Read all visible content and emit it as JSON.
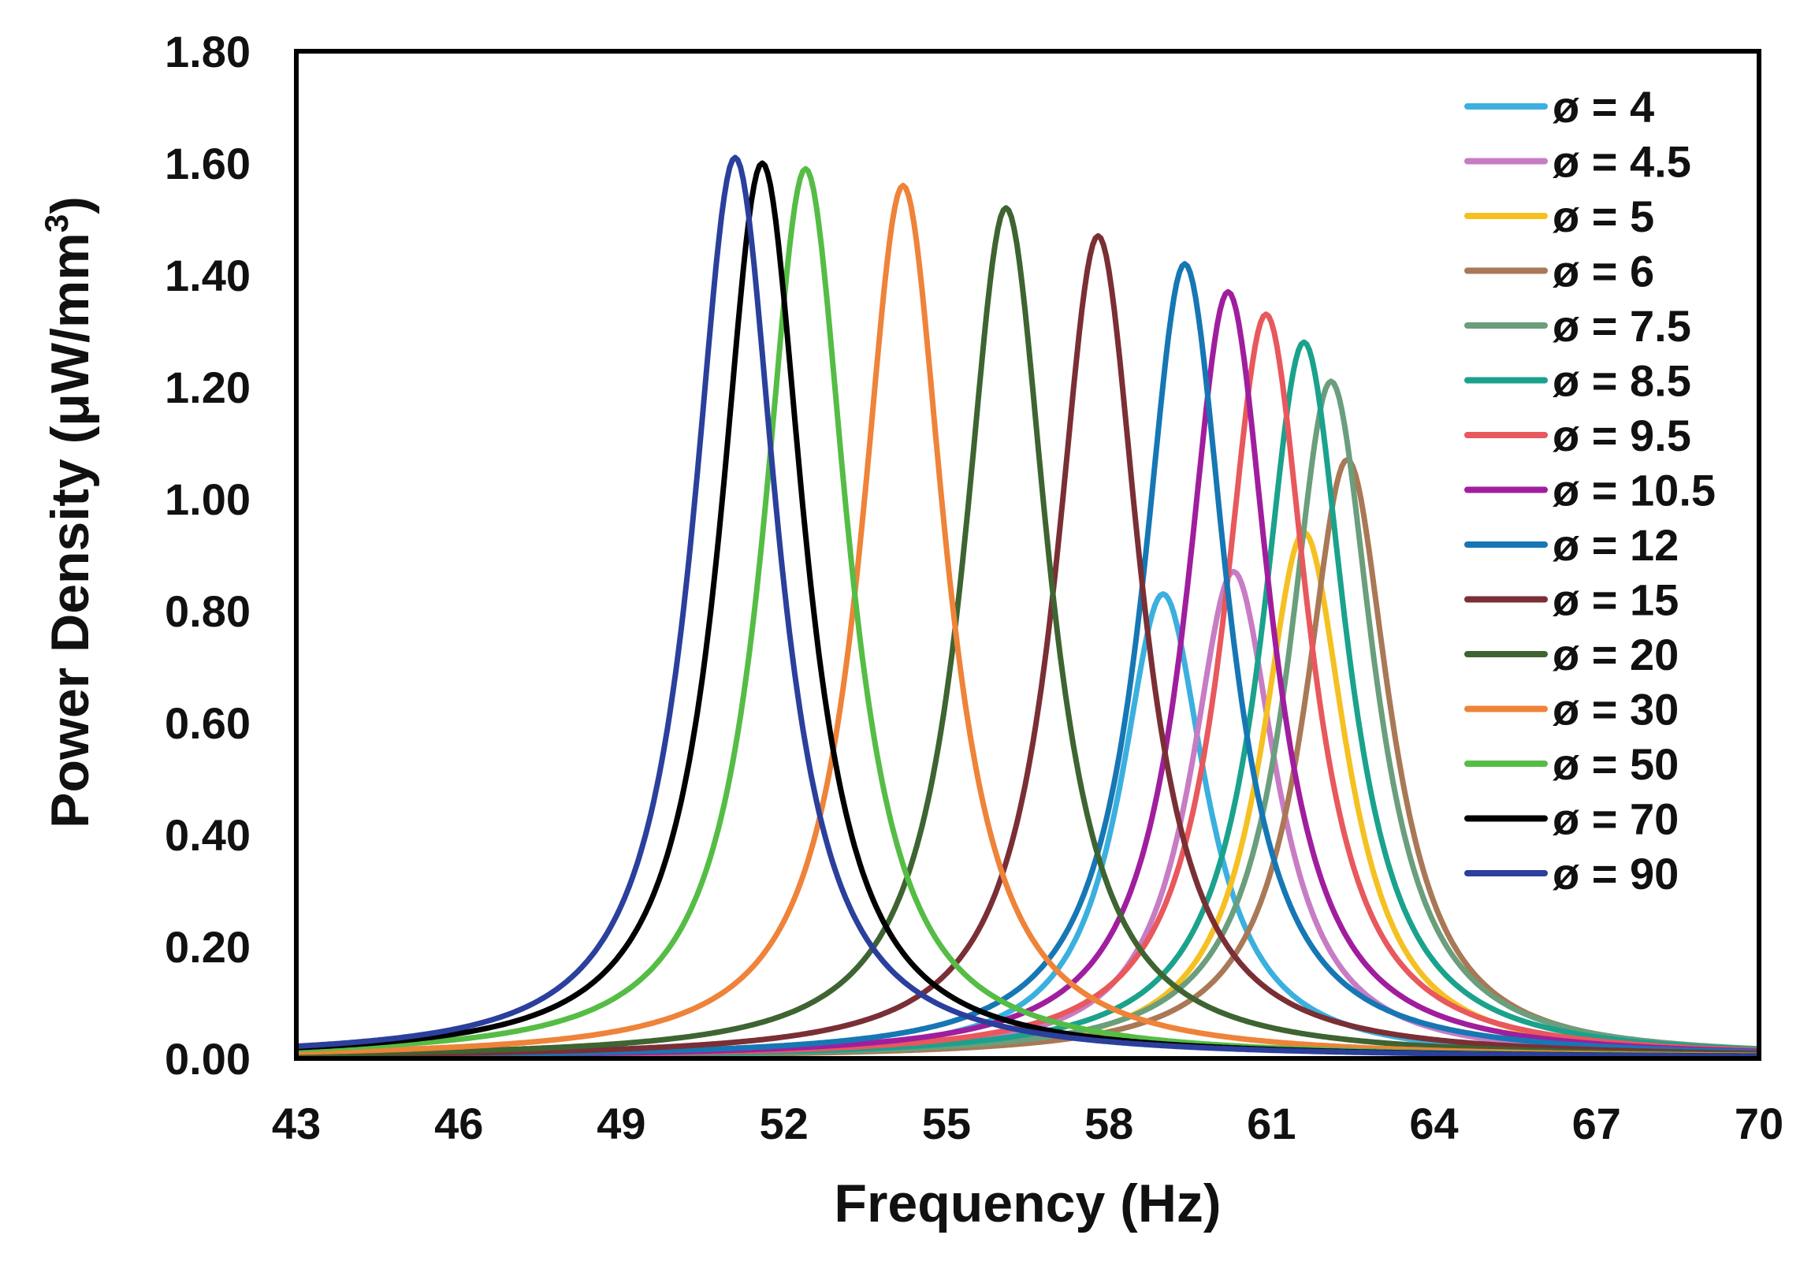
{
  "chart_data": {
    "type": "line",
    "title": "",
    "xlabel": "Frequency (Hz)",
    "ylabel_main": "Power Density (μW/mm",
    "ylabel_sup": "3",
    "ylabel_close": ")",
    "xlim": [
      43,
      70
    ],
    "ylim": [
      0,
      1.8
    ],
    "x_ticks": [
      "43",
      "46",
      "49",
      "52",
      "55",
      "58",
      "61",
      "64",
      "67",
      "70"
    ],
    "y_ticks": [
      "0.00",
      "0.20",
      "0.40",
      "0.60",
      "0.80",
      "1.00",
      "1.20",
      "1.40",
      "1.60",
      "1.80"
    ],
    "grid": false,
    "legend_position": "top-right",
    "series": [
      {
        "name": "ø = 4",
        "color": "#3bb0df",
        "peak_x": 59.0,
        "peak_y": 0.83,
        "hwhm": 0.95
      },
      {
        "name": "ø = 4.5",
        "color": "#c77cc4",
        "peak_x": 60.3,
        "peak_y": 0.87,
        "hwhm": 0.95
      },
      {
        "name": "ø = 5",
        "color": "#f5c022",
        "peak_x": 61.6,
        "peak_y": 0.94,
        "hwhm": 0.95
      },
      {
        "name": "ø = 6",
        "color": "#a97856",
        "peak_x": 62.4,
        "peak_y": 1.07,
        "hwhm": 0.95
      },
      {
        "name": "ø = 7.5",
        "color": "#6a9e7c",
        "peak_x": 62.1,
        "peak_y": 1.21,
        "hwhm": 0.95
      },
      {
        "name": "ø = 8.5",
        "color": "#1aa28c",
        "peak_x": 61.6,
        "peak_y": 1.28,
        "hwhm": 0.95
      },
      {
        "name": "ø = 9.5",
        "color": "#e8585c",
        "peak_x": 60.9,
        "peak_y": 1.33,
        "hwhm": 0.95
      },
      {
        "name": "ø = 10.5",
        "color": "#a01e9e",
        "peak_x": 60.2,
        "peak_y": 1.37,
        "hwhm": 0.95
      },
      {
        "name": "ø = 12",
        "color": "#1677b4",
        "peak_x": 59.4,
        "peak_y": 1.42,
        "hwhm": 0.95
      },
      {
        "name": "ø = 15",
        "color": "#7a2f35",
        "peak_x": 57.8,
        "peak_y": 1.47,
        "hwhm": 0.95
      },
      {
        "name": "ø = 20",
        "color": "#3e6431",
        "peak_x": 56.1,
        "peak_y": 1.52,
        "hwhm": 0.95
      },
      {
        "name": "ø = 30",
        "color": "#ee8339",
        "peak_x": 54.2,
        "peak_y": 1.56,
        "hwhm": 0.95
      },
      {
        "name": "ø = 50",
        "color": "#55bd45",
        "peak_x": 52.4,
        "peak_y": 1.59,
        "hwhm": 0.95
      },
      {
        "name": "ø = 70",
        "color": "#000000",
        "peak_x": 51.6,
        "peak_y": 1.6,
        "hwhm": 0.95
      },
      {
        "name": "ø = 90",
        "color": "#2b3f9c",
        "peak_x": 51.1,
        "peak_y": 1.61,
        "hwhm": 0.95
      }
    ]
  }
}
